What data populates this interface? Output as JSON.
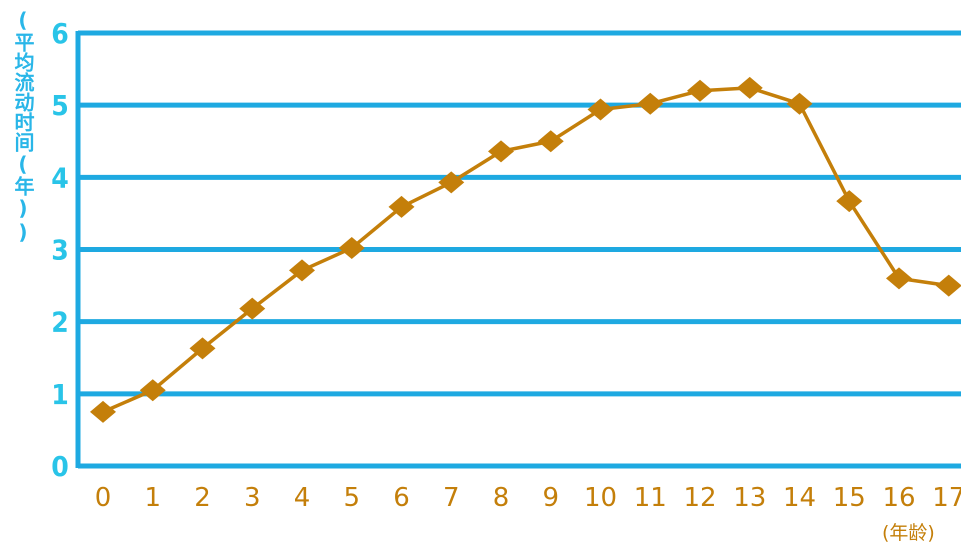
{
  "chart_data": {
    "type": "line",
    "x": [
      "0",
      "1",
      "2",
      "3",
      "4",
      "5",
      "6",
      "7",
      "8",
      "9",
      "10",
      "11",
      "12",
      "13",
      "14",
      "15",
      "16",
      "17"
    ],
    "values": [
      0.75,
      1.05,
      1.63,
      2.18,
      2.71,
      3.02,
      3.59,
      3.93,
      4.36,
      4.5,
      4.94,
      5.02,
      5.2,
      5.24,
      5.02,
      3.67,
      2.6,
      2.5
    ],
    "xlabel": "(年龄)",
    "ylabel": "(平均流动时间(年))",
    "ylim": [
      0,
      6
    ],
    "yticks": [
      "0",
      "1",
      "2",
      "3",
      "4",
      "5",
      "6"
    ],
    "grid": true,
    "colors": {
      "grid": "#1ea9e1",
      "axis": "#1ea9e1",
      "ytick": "#29c4e8",
      "line": "#c47f0a",
      "marker": "#c47f0a"
    }
  }
}
